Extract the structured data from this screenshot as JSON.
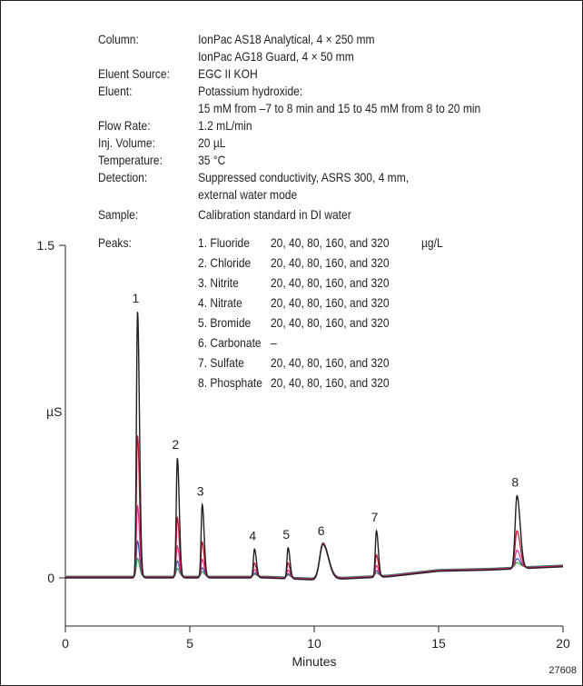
{
  "figure_id": "27608",
  "conditions": {
    "column_label": "Column:",
    "column_lines": [
      "IonPac AS18 Analytical, 4 × 250 mm",
      "IonPac AG18 Guard, 4 × 50 mm"
    ],
    "eluent_source_label": "Eluent Source:",
    "eluent_source": "EGC II KOH",
    "eluent_label": "Eluent:",
    "eluent_lines": [
      "Potassium hydroxide:",
      "15 mM from –7 to 8 min and 15 to 45 mM from 8 to 20 min"
    ],
    "flow_rate_label": "Flow Rate:",
    "flow_rate": "1.2 mL/min",
    "inj_volume_label": "Inj. Volume:",
    "inj_volume": "20 µL",
    "temperature_label": "Temperature:",
    "temperature": "35 °C",
    "detection_label": "Detection:",
    "detection_lines": [
      "Suppressed conductivity, ASRS 300, 4 mm,",
      "external water mode"
    ],
    "sample_label": "Sample:",
    "sample": "Calibration standard in DI water",
    "peaks_label": "Peaks:"
  },
  "peaks_table": {
    "unit": "µg/L",
    "rows": [
      {
        "name": "1. Fluoride",
        "conc": "20, 40, 80, 160, and 320"
      },
      {
        "name": "2. Chloride",
        "conc": "20, 40, 80, 160, and 320"
      },
      {
        "name": "3. Nitrite",
        "conc": "20, 40, 80, 160, and 320"
      },
      {
        "name": "4. Nitrate",
        "conc": "20, 40, 80, 160, and 320"
      },
      {
        "name": "5. Bromide",
        "conc": "20, 40, 80, 160, and 320"
      },
      {
        "name": "6. Carbonate",
        "conc": "–"
      },
      {
        "name": "7. Sulfate",
        "conc": "20, 40, 80, 160, and 320"
      },
      {
        "name": "8. Phosphate",
        "conc": "20, 40, 80, 160, and 320"
      }
    ]
  },
  "chart_data": {
    "type": "line",
    "xlabel": "Minutes",
    "ylabel": "µS",
    "xlim": [
      0,
      20
    ],
    "ylim": [
      -0.25,
      1.5
    ],
    "x_ticks": [
      0,
      5,
      10,
      15,
      20
    ],
    "y_tick_labels": [
      "0",
      "1.5"
    ],
    "y_tick_values": [
      0,
      1.5
    ],
    "grid": false,
    "series_colors": [
      "#231f20",
      "#c8102e",
      "#d6338f",
      "#3850a8",
      "#3aa83a"
    ],
    "peaks": [
      {
        "label": "1",
        "time": 2.9,
        "heights": [
          1.2,
          0.64,
          0.32,
          0.16,
          0.08
        ]
      },
      {
        "label": "2",
        "time": 4.5,
        "heights": [
          0.54,
          0.27,
          0.14,
          0.07,
          0.035
        ]
      },
      {
        "label": "3",
        "time": 5.5,
        "heights": [
          0.33,
          0.16,
          0.08,
          0.04,
          0.02
        ]
      },
      {
        "label": "4",
        "time": 7.6,
        "heights": [
          0.13,
          0.065,
          0.033,
          0.016,
          0.008
        ]
      },
      {
        "label": "5",
        "time": 8.95,
        "heights": [
          0.14,
          0.07,
          0.035,
          0.017,
          0.009
        ]
      },
      {
        "label": "6",
        "time": 10.35,
        "heights": [
          0.16,
          0.16,
          0.16,
          0.16,
          0.16
        ]
      },
      {
        "label": "7",
        "time": 12.5,
        "heights": [
          0.21,
          0.1,
          0.05,
          0.025,
          0.012
        ]
      },
      {
        "label": "8",
        "time": 18.15,
        "heights": [
          0.33,
          0.17,
          0.08,
          0.04,
          0.02
        ]
      }
    ],
    "baseline": {
      "x": [
        0,
        8,
        10.2,
        13,
        15,
        17,
        18,
        20
      ],
      "y": [
        0.0,
        0.0,
        -0.01,
        0.005,
        0.03,
        0.035,
        0.04,
        0.05
      ]
    }
  }
}
